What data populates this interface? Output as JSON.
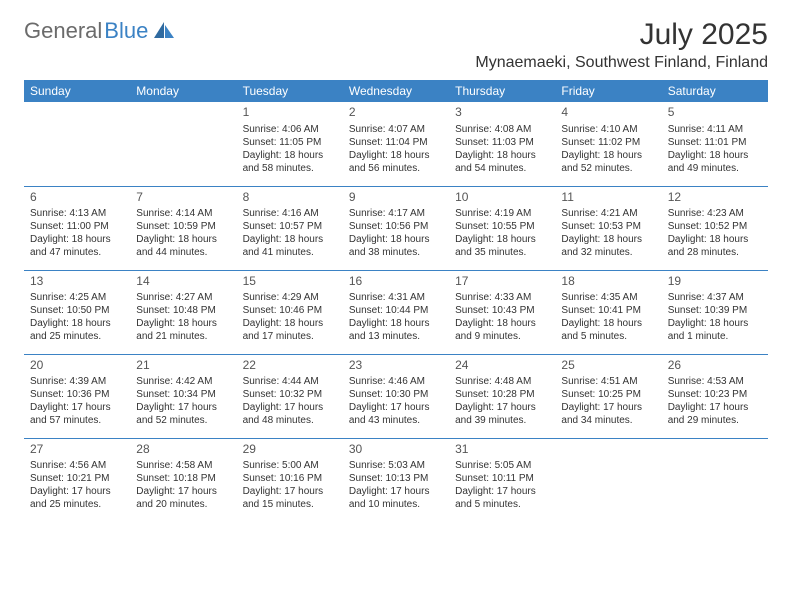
{
  "logo": {
    "text1": "General",
    "text2": "Blue"
  },
  "header": {
    "month_title": "July 2025",
    "location": "Mynaemaeki, Southwest Finland, Finland"
  },
  "colors": {
    "header_bg": "#3b82c4",
    "header_text": "#ffffff",
    "row_border": "#3b82c4",
    "body_text": "#333333",
    "logo_gray": "#6b6b6b",
    "logo_blue": "#3b82c4",
    "background": "#ffffff"
  },
  "typography": {
    "month_title_fontsize": 30,
    "location_fontsize": 16,
    "weekday_fontsize": 12,
    "daynum_fontsize": 12,
    "cell_fontsize": 10
  },
  "weekdays": [
    "Sunday",
    "Monday",
    "Tuesday",
    "Wednesday",
    "Thursday",
    "Friday",
    "Saturday"
  ],
  "weeks": [
    [
      {
        "day": "",
        "sunrise": "",
        "sunset": "",
        "daylight": ""
      },
      {
        "day": "",
        "sunrise": "",
        "sunset": "",
        "daylight": ""
      },
      {
        "day": "1",
        "sunrise": "Sunrise: 4:06 AM",
        "sunset": "Sunset: 11:05 PM",
        "daylight": "Daylight: 18 hours and 58 minutes."
      },
      {
        "day": "2",
        "sunrise": "Sunrise: 4:07 AM",
        "sunset": "Sunset: 11:04 PM",
        "daylight": "Daylight: 18 hours and 56 minutes."
      },
      {
        "day": "3",
        "sunrise": "Sunrise: 4:08 AM",
        "sunset": "Sunset: 11:03 PM",
        "daylight": "Daylight: 18 hours and 54 minutes."
      },
      {
        "day": "4",
        "sunrise": "Sunrise: 4:10 AM",
        "sunset": "Sunset: 11:02 PM",
        "daylight": "Daylight: 18 hours and 52 minutes."
      },
      {
        "day": "5",
        "sunrise": "Sunrise: 4:11 AM",
        "sunset": "Sunset: 11:01 PM",
        "daylight": "Daylight: 18 hours and 49 minutes."
      }
    ],
    [
      {
        "day": "6",
        "sunrise": "Sunrise: 4:13 AM",
        "sunset": "Sunset: 11:00 PM",
        "daylight": "Daylight: 18 hours and 47 minutes."
      },
      {
        "day": "7",
        "sunrise": "Sunrise: 4:14 AM",
        "sunset": "Sunset: 10:59 PM",
        "daylight": "Daylight: 18 hours and 44 minutes."
      },
      {
        "day": "8",
        "sunrise": "Sunrise: 4:16 AM",
        "sunset": "Sunset: 10:57 PM",
        "daylight": "Daylight: 18 hours and 41 minutes."
      },
      {
        "day": "9",
        "sunrise": "Sunrise: 4:17 AM",
        "sunset": "Sunset: 10:56 PM",
        "daylight": "Daylight: 18 hours and 38 minutes."
      },
      {
        "day": "10",
        "sunrise": "Sunrise: 4:19 AM",
        "sunset": "Sunset: 10:55 PM",
        "daylight": "Daylight: 18 hours and 35 minutes."
      },
      {
        "day": "11",
        "sunrise": "Sunrise: 4:21 AM",
        "sunset": "Sunset: 10:53 PM",
        "daylight": "Daylight: 18 hours and 32 minutes."
      },
      {
        "day": "12",
        "sunrise": "Sunrise: 4:23 AM",
        "sunset": "Sunset: 10:52 PM",
        "daylight": "Daylight: 18 hours and 28 minutes."
      }
    ],
    [
      {
        "day": "13",
        "sunrise": "Sunrise: 4:25 AM",
        "sunset": "Sunset: 10:50 PM",
        "daylight": "Daylight: 18 hours and 25 minutes."
      },
      {
        "day": "14",
        "sunrise": "Sunrise: 4:27 AM",
        "sunset": "Sunset: 10:48 PM",
        "daylight": "Daylight: 18 hours and 21 minutes."
      },
      {
        "day": "15",
        "sunrise": "Sunrise: 4:29 AM",
        "sunset": "Sunset: 10:46 PM",
        "daylight": "Daylight: 18 hours and 17 minutes."
      },
      {
        "day": "16",
        "sunrise": "Sunrise: 4:31 AM",
        "sunset": "Sunset: 10:44 PM",
        "daylight": "Daylight: 18 hours and 13 minutes."
      },
      {
        "day": "17",
        "sunrise": "Sunrise: 4:33 AM",
        "sunset": "Sunset: 10:43 PM",
        "daylight": "Daylight: 18 hours and 9 minutes."
      },
      {
        "day": "18",
        "sunrise": "Sunrise: 4:35 AM",
        "sunset": "Sunset: 10:41 PM",
        "daylight": "Daylight: 18 hours and 5 minutes."
      },
      {
        "day": "19",
        "sunrise": "Sunrise: 4:37 AM",
        "sunset": "Sunset: 10:39 PM",
        "daylight": "Daylight: 18 hours and 1 minute."
      }
    ],
    [
      {
        "day": "20",
        "sunrise": "Sunrise: 4:39 AM",
        "sunset": "Sunset: 10:36 PM",
        "daylight": "Daylight: 17 hours and 57 minutes."
      },
      {
        "day": "21",
        "sunrise": "Sunrise: 4:42 AM",
        "sunset": "Sunset: 10:34 PM",
        "daylight": "Daylight: 17 hours and 52 minutes."
      },
      {
        "day": "22",
        "sunrise": "Sunrise: 4:44 AM",
        "sunset": "Sunset: 10:32 PM",
        "daylight": "Daylight: 17 hours and 48 minutes."
      },
      {
        "day": "23",
        "sunrise": "Sunrise: 4:46 AM",
        "sunset": "Sunset: 10:30 PM",
        "daylight": "Daylight: 17 hours and 43 minutes."
      },
      {
        "day": "24",
        "sunrise": "Sunrise: 4:48 AM",
        "sunset": "Sunset: 10:28 PM",
        "daylight": "Daylight: 17 hours and 39 minutes."
      },
      {
        "day": "25",
        "sunrise": "Sunrise: 4:51 AM",
        "sunset": "Sunset: 10:25 PM",
        "daylight": "Daylight: 17 hours and 34 minutes."
      },
      {
        "day": "26",
        "sunrise": "Sunrise: 4:53 AM",
        "sunset": "Sunset: 10:23 PM",
        "daylight": "Daylight: 17 hours and 29 minutes."
      }
    ],
    [
      {
        "day": "27",
        "sunrise": "Sunrise: 4:56 AM",
        "sunset": "Sunset: 10:21 PM",
        "daylight": "Daylight: 17 hours and 25 minutes."
      },
      {
        "day": "28",
        "sunrise": "Sunrise: 4:58 AM",
        "sunset": "Sunset: 10:18 PM",
        "daylight": "Daylight: 17 hours and 20 minutes."
      },
      {
        "day": "29",
        "sunrise": "Sunrise: 5:00 AM",
        "sunset": "Sunset: 10:16 PM",
        "daylight": "Daylight: 17 hours and 15 minutes."
      },
      {
        "day": "30",
        "sunrise": "Sunrise: 5:03 AM",
        "sunset": "Sunset: 10:13 PM",
        "daylight": "Daylight: 17 hours and 10 minutes."
      },
      {
        "day": "31",
        "sunrise": "Sunrise: 5:05 AM",
        "sunset": "Sunset: 10:11 PM",
        "daylight": "Daylight: 17 hours and 5 minutes."
      },
      {
        "day": "",
        "sunrise": "",
        "sunset": "",
        "daylight": ""
      },
      {
        "day": "",
        "sunrise": "",
        "sunset": "",
        "daylight": ""
      }
    ]
  ]
}
